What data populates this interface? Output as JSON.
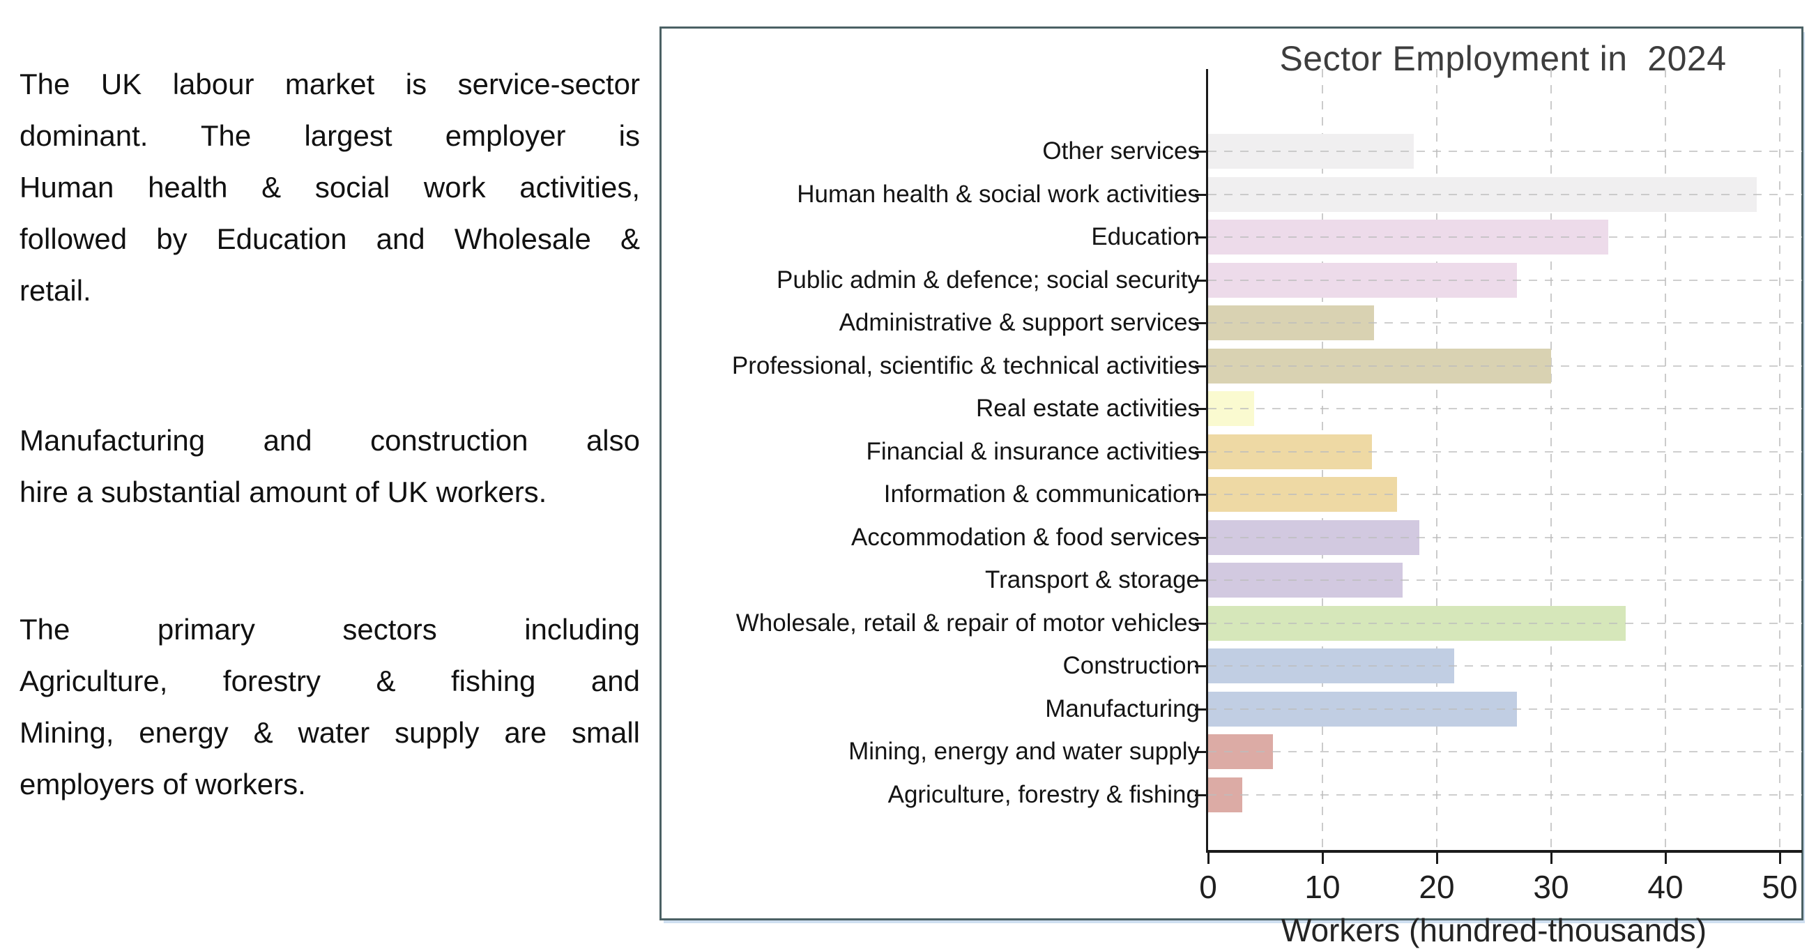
{
  "left_panel": {
    "paragraphs": [
      {
        "lines": [
          "The UK labour market is service-sector",
          "dominant. The largest employer is",
          "Human health & social work activities,",
          "followed by Education and Wholesale &",
          "retail."
        ]
      },
      {
        "lines": [
          "Manufacturing and construction also",
          "hire a substantial amount of UK workers."
        ]
      },
      {
        "lines": [
          "The primary sectors including",
          "Agriculture, forestry & fishing and",
          "Mining, energy & water supply  are small",
          "employers of workers."
        ]
      }
    ]
  },
  "chart_data": {
    "type": "bar",
    "orientation": "horizontal",
    "title": "Sector Employment in  2024",
    "xlabel": "Workers (hundred-thousands)",
    "xlim": [
      0,
      50
    ],
    "xticks": [
      0,
      10,
      20,
      30,
      40,
      50
    ],
    "grid": "dashed, both axes",
    "legend": "none",
    "categories_top_to_bottom": [
      "Other services",
      "Human health & social work activities",
      "Education",
      "Public admin & defence; social security",
      "Administrative & support services",
      "Professional, scientific & technical activities",
      "Real estate activities",
      "Financial & insurance activities",
      "Information & communication",
      "Accommodation & food services",
      "Transport & storage",
      "Wholesale, retail & repair of motor vehicles",
      "Construction",
      "Manufacturing",
      "Mining, energy and water supply",
      "Agriculture, forestry & fishing"
    ],
    "values": [
      18,
      48,
      35,
      27,
      14.5,
      30,
      4,
      14.3,
      16.5,
      18.5,
      17,
      36.5,
      21.5,
      27,
      5.7,
      3
    ],
    "bar_colors": [
      "#f0eff0",
      "#f0eff0",
      "#eddbea",
      "#eddbea",
      "#d9d2b2",
      "#d9d2b2",
      "#fafad0",
      "#eed9a4",
      "#eed9a4",
      "#d2c9e0",
      "#d2c9e0",
      "#d6e7ba",
      "#c1cee3",
      "#c1cee3",
      "#dcaba5",
      "#dcaba5"
    ]
  },
  "style_colors": {
    "frame_border": "#4b6164",
    "frame_shadow": "#cfdff0",
    "axis_line": "#1a1a1a",
    "gridline": "#c9c9c9",
    "title_text": "#3d3d3d",
    "body_text": "#111111"
  }
}
